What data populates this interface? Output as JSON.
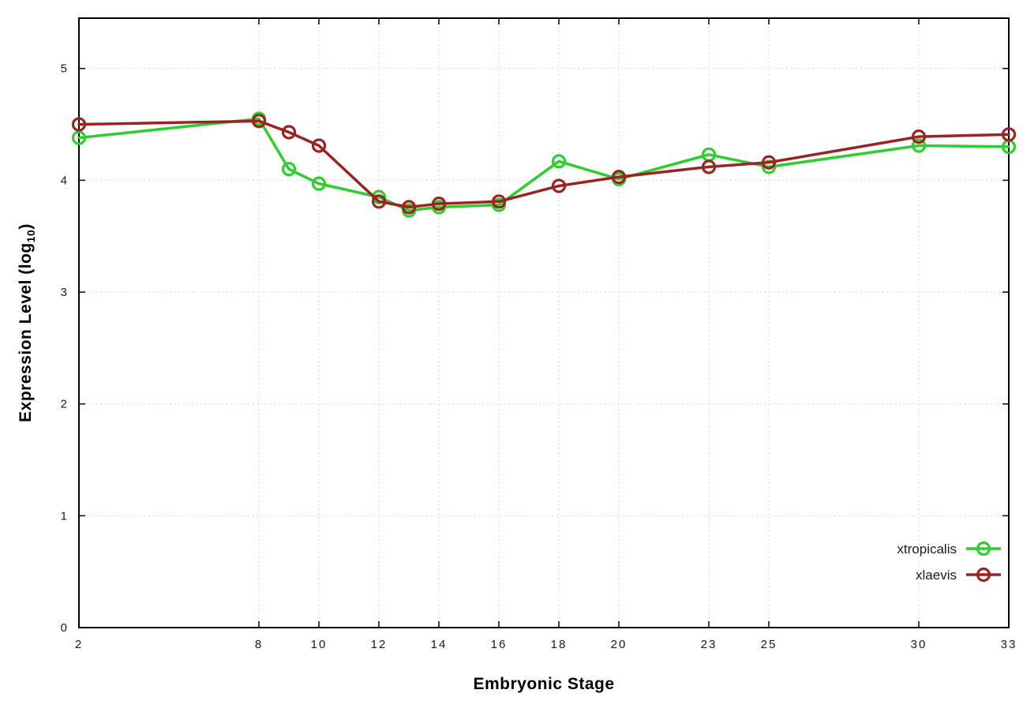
{
  "labels": {
    "xlabel": "Embryonic Stage",
    "ylabel_pre": "Expression Level (log",
    "ylabel_sub": "10",
    "ylabel_post": ")"
  },
  "colors": {
    "xtropicalis": "#2fce2f",
    "xlaevis": "#9b2422",
    "grid": "#c9c9c9",
    "border": "#000000",
    "tick_text": "#1a1a1a"
  },
  "chart_data": {
    "type": "line",
    "title": "",
    "xlabel": "Embryonic Stage",
    "ylabel": "Expression Level (log10)",
    "xlim": [
      2,
      33
    ],
    "ylim": [
      0,
      5.45
    ],
    "xticks": [
      2,
      8,
      10,
      12,
      14,
      16,
      18,
      20,
      23,
      25,
      30,
      33
    ],
    "yticks": [
      0,
      1,
      2,
      3,
      4,
      5
    ],
    "grid": true,
    "legend_position": "bottom-right",
    "x": [
      2,
      8,
      9,
      10,
      12,
      13,
      14,
      16,
      18,
      20,
      23,
      25,
      30,
      33
    ],
    "series": [
      {
        "name": "xtropicalis",
        "color": "#2fce2f",
        "values": [
          4.38,
          4.55,
          4.1,
          3.97,
          3.85,
          3.73,
          3.76,
          3.78,
          4.17,
          4.01,
          4.23,
          4.12,
          4.31,
          4.3
        ]
      },
      {
        "name": "xlaevis",
        "color": "#9b2422",
        "values": [
          4.5,
          4.53,
          4.43,
          4.31,
          3.81,
          3.76,
          3.79,
          3.81,
          3.95,
          4.03,
          4.12,
          4.16,
          4.39,
          4.41
        ]
      }
    ]
  }
}
